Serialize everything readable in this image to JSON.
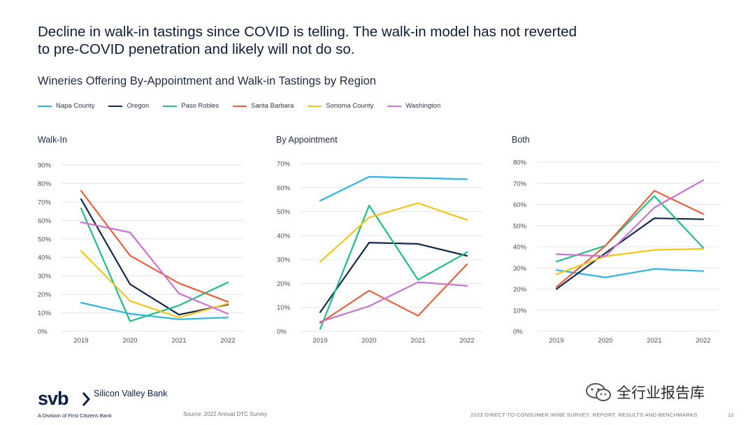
{
  "headline": "Decline in walk-in tastings since COVID is telling. The walk-in model has not reverted to pre-COVID penetration and likely will not do so.",
  "subtitle": "Wineries Offering By-Appointment and Walk-in Tastings by Region",
  "legend": [
    {
      "name": "Napa County",
      "color": "#29b5e8"
    },
    {
      "name": "Oregon",
      "color": "#13294b"
    },
    {
      "name": "Paso Robles",
      "color": "#1fbf84"
    },
    {
      "name": "Santa Barbara",
      "color": "#e8613a"
    },
    {
      "name": "Sonoma County",
      "color": "#f5c518"
    },
    {
      "name": "Washington",
      "color": "#cc72d0"
    }
  ],
  "chart_data": [
    {
      "type": "line",
      "title": "Walk-In",
      "categories": [
        "2019",
        "2020",
        "2021",
        "2022"
      ],
      "ylim": [
        0,
        90
      ],
      "yticks": [
        0,
        10,
        20,
        30,
        40,
        50,
        60,
        70,
        80,
        90
      ],
      "series": [
        {
          "name": "Napa County",
          "values": [
            15.5,
            9.5,
            6.5,
            7.5
          ]
        },
        {
          "name": "Oregon",
          "values": [
            71.5,
            25.5,
            9.0,
            14.5
          ]
        },
        {
          "name": "Paso Robles",
          "values": [
            66.5,
            5.5,
            14.0,
            26.5
          ]
        },
        {
          "name": "Santa Barbara",
          "values": [
            76.0,
            41.0,
            26.0,
            16.0
          ]
        },
        {
          "name": "Sonoma County",
          "values": [
            43.5,
            16.5,
            7.5,
            15.0
          ]
        },
        {
          "name": "Washington",
          "values": [
            59.0,
            53.5,
            20.5,
            9.5
          ]
        }
      ]
    },
    {
      "type": "line",
      "title": "By Appointment",
      "categories": [
        "2019",
        "2020",
        "2021",
        "2022"
      ],
      "ylim": [
        0,
        70
      ],
      "yticks": [
        0,
        10,
        20,
        30,
        40,
        50,
        60,
        70
      ],
      "series": [
        {
          "name": "Napa County",
          "values": [
            54.5,
            64.5,
            64.0,
            63.5
          ]
        },
        {
          "name": "Oregon",
          "values": [
            8.0,
            37.0,
            36.5,
            31.5
          ]
        },
        {
          "name": "Paso Robles",
          "values": [
            1.0,
            52.5,
            21.5,
            33.0
          ]
        },
        {
          "name": "Santa Barbara",
          "values": [
            3.5,
            17.0,
            6.5,
            28.0
          ]
        },
        {
          "name": "Sonoma County",
          "values": [
            29.0,
            47.5,
            53.5,
            46.5
          ]
        },
        {
          "name": "Washington",
          "values": [
            4.0,
            10.5,
            20.5,
            19.0
          ]
        }
      ]
    },
    {
      "type": "line",
      "title": "Both",
      "categories": [
        "2019",
        "2020",
        "2021",
        "2022"
      ],
      "ylim": [
        0,
        80
      ],
      "yticks": [
        0,
        10,
        20,
        30,
        40,
        50,
        60,
        70,
        80
      ],
      "series": [
        {
          "name": "Napa County",
          "values": [
            29.0,
            25.5,
            29.5,
            28.5
          ]
        },
        {
          "name": "Oregon",
          "values": [
            20.0,
            37.0,
            53.5,
            53.0
          ]
        },
        {
          "name": "Paso Robles",
          "values": [
            33.0,
            40.5,
            64.0,
            39.5
          ]
        },
        {
          "name": "Santa Barbara",
          "values": [
            21.0,
            40.5,
            66.5,
            55.5
          ]
        },
        {
          "name": "Sonoma County",
          "values": [
            27.0,
            35.5,
            38.5,
            39.0
          ]
        },
        {
          "name": "Washington",
          "values": [
            36.5,
            35.5,
            58.5,
            71.5
          ]
        }
      ]
    }
  ],
  "footer": {
    "source": "Source: 2022 Annual DTC Survey",
    "report": "2023 DIRECT-TO-CONSUMER WINE SURVEY: REPORT, RESULTS AND BENCHMARKS",
    "page": "12"
  },
  "logo": {
    "mark": "svb",
    "name": "Silicon Valley Bank",
    "division": "A Division of First Citizens Bank"
  },
  "watermark": "全行业报告库"
}
